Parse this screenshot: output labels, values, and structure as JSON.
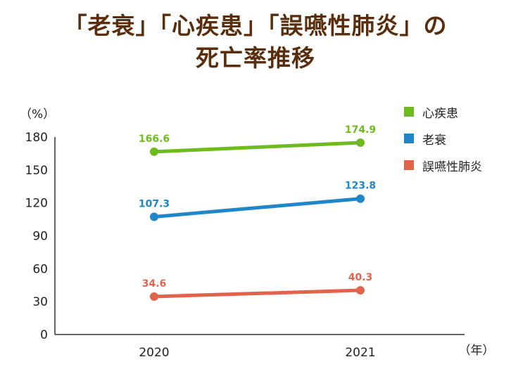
{
  "title_lines": [
    "「老衰」「心疾患」「誤嚥性肺炎」の",
    "死亡率推移"
  ],
  "chart_data": {
    "type": "line",
    "title": "「老衰」「心疾患」「誤嚥性肺炎」の死亡率推移",
    "x": [
      "2020",
      "2021"
    ],
    "xlabel": "（年）",
    "ylabel": "（%）",
    "ylim": [
      0,
      180
    ],
    "yticks": [
      0,
      30,
      60,
      90,
      120,
      150,
      180
    ],
    "grid": false,
    "legend_position": "top-right",
    "series": [
      {
        "name": "心疾患",
        "values": [
          166.6,
          174.9
        ],
        "color": "#6fba1c"
      },
      {
        "name": "老衰",
        "values": [
          107.3,
          123.8
        ],
        "color": "#1f86c8"
      },
      {
        "name": "誤嚥性肺炎",
        "values": [
          34.6,
          40.3
        ],
        "color": "#e2634b"
      }
    ]
  }
}
